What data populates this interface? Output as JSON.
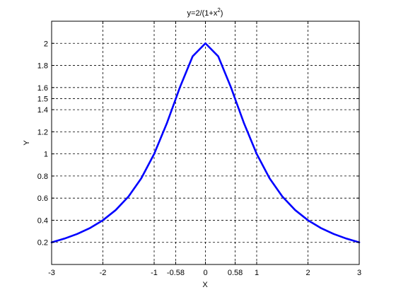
{
  "chart_data": {
    "type": "line",
    "title": {
      "prefix": "y=2/(1+x",
      "superscript": "2",
      "suffix": ")"
    },
    "xlabel": "X",
    "ylabel": "Y",
    "xlim": [
      -3,
      3
    ],
    "ylim": [
      0.0,
      2.2
    ],
    "xticks": [
      {
        "value": -3,
        "label": "-3"
      },
      {
        "value": -2,
        "label": "-2"
      },
      {
        "value": -1,
        "label": "-1"
      },
      {
        "value": -0.58,
        "label": "-0.58"
      },
      {
        "value": 0,
        "label": "0"
      },
      {
        "value": 0.58,
        "label": "0.58"
      },
      {
        "value": 1,
        "label": "1"
      },
      {
        "value": 2,
        "label": "2"
      },
      {
        "value": 3,
        "label": "3"
      }
    ],
    "yticks": [
      {
        "value": 0.2,
        "label": "0.2"
      },
      {
        "value": 0.4,
        "label": "0.4"
      },
      {
        "value": 0.6,
        "label": "0.6"
      },
      {
        "value": 0.8,
        "label": "0.8"
      },
      {
        "value": 1.0,
        "label": "1"
      },
      {
        "value": 1.2,
        "label": "1.2"
      },
      {
        "value": 1.4,
        "label": "1.4"
      },
      {
        "value": 1.5,
        "label": "1.5"
      },
      {
        "value": 1.6,
        "label": "1.6"
      },
      {
        "value": 1.8,
        "label": "1.8"
      },
      {
        "value": 2.0,
        "label": "2"
      }
    ],
    "grid": true,
    "series": [
      {
        "color": "#0000ff",
        "x": [
          -3.0,
          -2.75,
          -2.5,
          -2.25,
          -2.0,
          -1.75,
          -1.5,
          -1.25,
          -1.0,
          -0.75,
          -0.58,
          -0.5,
          -0.25,
          0.0,
          0.25,
          0.5,
          0.58,
          0.75,
          1.0,
          1.25,
          1.5,
          1.75,
          2.0,
          2.25,
          2.5,
          2.75,
          3.0
        ],
        "y": [
          0.2,
          0.234,
          0.276,
          0.33,
          0.4,
          0.492,
          0.615,
          0.78,
          1.0,
          1.28,
          1.496,
          1.6,
          1.882,
          2.0,
          1.882,
          1.6,
          1.496,
          1.28,
          1.0,
          0.78,
          0.615,
          0.492,
          0.4,
          0.33,
          0.276,
          0.234,
          0.2
        ]
      }
    ]
  }
}
